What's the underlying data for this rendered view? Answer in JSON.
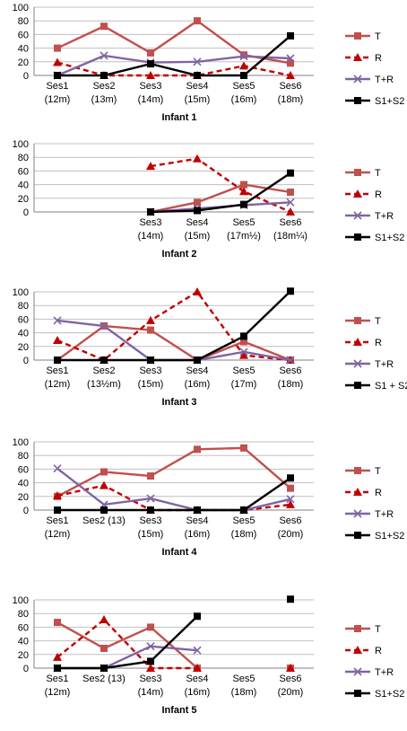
{
  "chart_data": [
    {
      "type": "line",
      "title": "Infant 1",
      "ylim": [
        0,
        100
      ],
      "yticks": [
        0,
        20,
        40,
        60,
        80,
        100
      ],
      "categories": [
        [
          "Ses1",
          "(12m)"
        ],
        [
          "Ses2",
          "(13m)"
        ],
        [
          "Ses3",
          "(14m)"
        ],
        [
          "Ses4",
          "(15m)"
        ],
        [
          "Ses5",
          "(16m)"
        ],
        [
          "Ses6",
          "(18m)"
        ]
      ],
      "series": [
        {
          "name": "T",
          "values": [
            40,
            72,
            33,
            80,
            30,
            18
          ]
        },
        {
          "name": "R",
          "values": [
            19,
            0,
            0,
            0,
            14,
            0
          ]
        },
        {
          "name": "T+R",
          "values": [
            0,
            29,
            19,
            20,
            28,
            25
          ]
        },
        {
          "name": "S1+S2",
          "values": [
            0,
            0,
            17,
            0,
            0,
            58
          ]
        }
      ]
    },
    {
      "type": "line",
      "title": "Infant 2",
      "ylim": [
        0,
        100
      ],
      "yticks": [
        0,
        20,
        40,
        60,
        80,
        100
      ],
      "categories": [
        [
          "",
          ""
        ],
        [
          "",
          ""
        ],
        [
          "Ses3",
          "(14m)"
        ],
        [
          "Ses4",
          "(15m)"
        ],
        [
          "Ses5",
          "(17m½)"
        ],
        [
          "Ses6",
          "(18m¼)"
        ]
      ],
      "series": [
        {
          "name": "T",
          "values": [
            null,
            null,
            0,
            14,
            40,
            29
          ]
        },
        {
          "name": "R",
          "values": [
            null,
            null,
            67,
            78,
            30,
            0
          ]
        },
        {
          "name": "T+R",
          "values": [
            null,
            null,
            0,
            5,
            10,
            14
          ]
        },
        {
          "name": "S1+S2",
          "values": [
            null,
            null,
            0,
            2,
            11,
            57
          ]
        }
      ]
    },
    {
      "type": "line",
      "title": "Infant 3",
      "ylim": [
        0,
        100
      ],
      "yticks": [
        0,
        20,
        40,
        60,
        80,
        100
      ],
      "categories": [
        [
          "Ses1",
          "(12m)"
        ],
        [
          "Ses2",
          "(13½m)"
        ],
        [
          "Ses3",
          "(15m)"
        ],
        [
          "Ses4",
          "(16m)"
        ],
        [
          "Ses5",
          "(17m)"
        ],
        [
          "Ses6",
          "(18m)"
        ]
      ],
      "series": [
        {
          "name": "T",
          "values": [
            0,
            50,
            44,
            0,
            27,
            0
          ]
        },
        {
          "name": "R",
          "values": [
            29,
            0,
            58,
            100,
            7,
            0
          ]
        },
        {
          "name": "T+R",
          "values": [
            58,
            50,
            0,
            0,
            12,
            0
          ]
        },
        {
          "name": "S1 + S2",
          "values": [
            0,
            0,
            0,
            0,
            35,
            101
          ]
        }
      ]
    },
    {
      "type": "line",
      "title": "Infant 4",
      "ylim": [
        0,
        100
      ],
      "yticks": [
        0,
        20,
        40,
        60,
        80,
        100
      ],
      "categories": [
        [
          "Ses1",
          "(12m)"
        ],
        [
          "Ses2 (13)",
          ""
        ],
        [
          "Ses3",
          "(15m)"
        ],
        [
          "Ses4",
          "(16m)"
        ],
        [
          "Ses5",
          "(18m)"
        ],
        [
          "Ses6",
          "(20m)"
        ]
      ],
      "series": [
        {
          "name": "T",
          "values": [
            20,
            56,
            50,
            89,
            91,
            32
          ]
        },
        {
          "name": "R",
          "values": [
            21,
            36,
            0,
            0,
            0,
            8
          ]
        },
        {
          "name": "T+R",
          "values": [
            61,
            8,
            17,
            0,
            0,
            16
          ]
        },
        {
          "name": "S1+S2",
          "values": [
            0,
            0,
            0,
            0,
            0,
            47
          ]
        }
      ]
    },
    {
      "type": "line",
      "title": "Infant 5",
      "ylim": [
        0,
        100
      ],
      "yticks": [
        0,
        20,
        40,
        60,
        80,
        100
      ],
      "categories": [
        [
          "Ses1",
          "(12m)"
        ],
        [
          "Ses2 (13)",
          ""
        ],
        [
          "Ses3",
          "(14m)"
        ],
        [
          "Ses4",
          "(16m)"
        ],
        [
          "Ses5",
          "(18m)"
        ],
        [
          "Ses6",
          "(20m)"
        ]
      ],
      "series": [
        {
          "name": "T",
          "values": [
            67,
            29,
            60,
            0,
            null,
            0
          ]
        },
        {
          "name": "R",
          "values": [
            16,
            71,
            0,
            0,
            null,
            0
          ]
        },
        {
          "name": "T+R",
          "values": [
            0,
            0,
            32,
            26,
            null,
            null
          ]
        },
        {
          "name": "S1+S2",
          "values": [
            0,
            0,
            10,
            76,
            null,
            101
          ]
        }
      ]
    }
  ],
  "style": {
    "colors": {
      "T": "#c0504d",
      "R": "#c00000",
      "TR": "#8064a2",
      "S": "#000000",
      "grid": "#bfbfbf",
      "axis": "#808080"
    },
    "markers": {
      "T": "square",
      "R": "triangle",
      "TR": "x",
      "S": "square"
    },
    "dashed": {
      "R": true
    }
  }
}
